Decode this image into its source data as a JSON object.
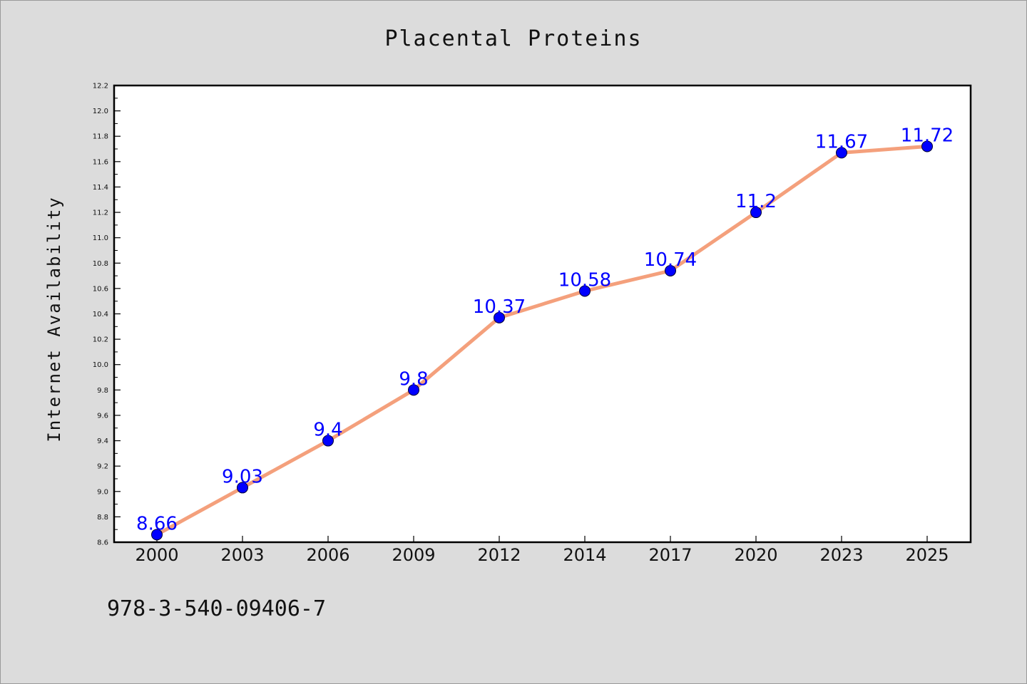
{
  "chart_data": {
    "type": "line",
    "title": "Placental Proteins",
    "ylabel": "Internet Availability",
    "xlabel": "",
    "categories": [
      "2000",
      "2003",
      "2006",
      "2009",
      "2012",
      "2014",
      "2017",
      "2020",
      "2023",
      "2025"
    ],
    "series": [
      {
        "values": [
          8.66,
          9.03,
          9.4,
          9.8,
          10.37,
          10.58,
          10.74,
          11.2,
          11.67,
          11.72
        ],
        "data_labels": [
          "8.66",
          "9.03",
          "9.4",
          "9.8",
          "10.37",
          "10.58",
          "10.74",
          "11.2",
          "11.67",
          "11.72"
        ],
        "line_color": "#f4a07c",
        "marker_color": "#0000ff"
      }
    ],
    "ylim": [
      8.6,
      12.2
    ],
    "y_major_ticks": [
      "8.6",
      "8.8",
      "9.0",
      "9.2",
      "9.4",
      "9.6",
      "9.8",
      "10.0",
      "10.2",
      "10.4",
      "10.6",
      "10.8",
      "11.0",
      "11.2",
      "11.4",
      "11.6",
      "11.8",
      "12.0",
      "12.2"
    ],
    "grid": false,
    "legend": "none"
  },
  "footer_text": "978-3-540-09406-7"
}
